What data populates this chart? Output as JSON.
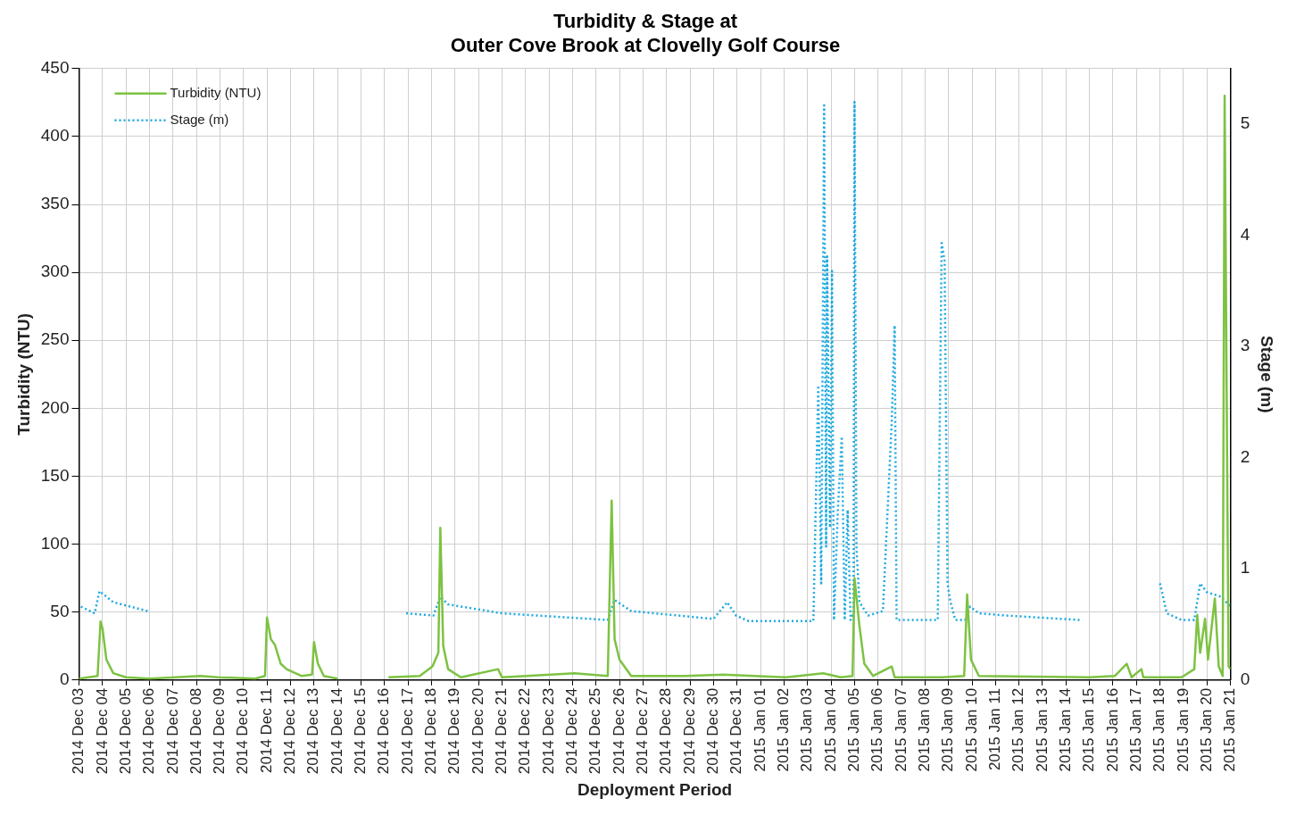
{
  "chart_data": {
    "type": "line",
    "title": "Turbidity & Stage at\nOuter Cove Brook at Clovelly Golf Course",
    "xlabel": "Deployment Period",
    "ylabel": "Turbidity (NTU)",
    "y2label": "Stage (m)",
    "xlim": [
      "2014-12-03",
      "2015-01-21"
    ],
    "xticks": [
      {
        "value": "2014-12-03",
        "label": "2014 Dec 03"
      },
      {
        "value": "2014-12-04",
        "label": "2014 Dec 04"
      },
      {
        "value": "2014-12-05",
        "label": "2014 Dec 05"
      },
      {
        "value": "2014-12-06",
        "label": "2014 Dec 06"
      },
      {
        "value": "2014-12-07",
        "label": "2014 Dec 07"
      },
      {
        "value": "2014-12-08",
        "label": "2014 Dec 08"
      },
      {
        "value": "2014-12-09",
        "label": "2014 Dec 09"
      },
      {
        "value": "2014-12-10",
        "label": "2014 Dec 10"
      },
      {
        "value": "2014-12-11",
        "label": "2014 Dec 11"
      },
      {
        "value": "2014-12-12",
        "label": "2014 Dec 12"
      },
      {
        "value": "2014-12-13",
        "label": "2014 Dec 13"
      },
      {
        "value": "2014-12-14",
        "label": "2014 Dec 14"
      },
      {
        "value": "2014-12-15",
        "label": "2014 Dec 15"
      },
      {
        "value": "2014-12-16",
        "label": "2014 Dec 16"
      },
      {
        "value": "2014-12-17",
        "label": "2014 Dec 17"
      },
      {
        "value": "2014-12-18",
        "label": "2014 Dec 18"
      },
      {
        "value": "2014-12-19",
        "label": "2014 Dec 19"
      },
      {
        "value": "2014-12-20",
        "label": "2014 Dec 20"
      },
      {
        "value": "2014-12-21",
        "label": "2014 Dec 21"
      },
      {
        "value": "2014-12-22",
        "label": "2014 Dec 22"
      },
      {
        "value": "2014-12-23",
        "label": "2014 Dec 23"
      },
      {
        "value": "2014-12-24",
        "label": "2014 Dec 24"
      },
      {
        "value": "2014-12-25",
        "label": "2014 Dec 25"
      },
      {
        "value": "2014-12-26",
        "label": "2014 Dec 26"
      },
      {
        "value": "2014-12-27",
        "label": "2014 Dec 27"
      },
      {
        "value": "2014-12-28",
        "label": "2014 Dec 28"
      },
      {
        "value": "2014-12-29",
        "label": "2014 Dec 29"
      },
      {
        "value": "2014-12-30",
        "label": "2014 Dec 30"
      },
      {
        "value": "2014-12-31",
        "label": "2014 Dec 31"
      },
      {
        "value": "2015-01-01",
        "label": "2015 Jan 01"
      },
      {
        "value": "2015-01-02",
        "label": "2015 Jan 02"
      },
      {
        "value": "2015-01-03",
        "label": "2015 Jan 03"
      },
      {
        "value": "2015-01-04",
        "label": "2015 Jan 04"
      },
      {
        "value": "2015-01-05",
        "label": "2015 Jan 05"
      },
      {
        "value": "2015-01-06",
        "label": "2015 Jan 06"
      },
      {
        "value": "2015-01-07",
        "label": "2015 Jan 07"
      },
      {
        "value": "2015-01-08",
        "label": "2015 Jan 08"
      },
      {
        "value": "2015-01-09",
        "label": "2015 Jan 09"
      },
      {
        "value": "2015-01-10",
        "label": "2015 Jan 10"
      },
      {
        "value": "2015-01-11",
        "label": "2015 Jan 11"
      },
      {
        "value": "2015-01-12",
        "label": "2015 Jan 12"
      },
      {
        "value": "2015-01-13",
        "label": "2015 Jan 13"
      },
      {
        "value": "2015-01-14",
        "label": "2015 Jan 14"
      },
      {
        "value": "2015-01-15",
        "label": "2015 Jan 15"
      },
      {
        "value": "2015-01-16",
        "label": "2015 Jan 16"
      },
      {
        "value": "2015-01-17",
        "label": "2015 Jan 17"
      },
      {
        "value": "2015-01-18",
        "label": "2015 Jan 18"
      },
      {
        "value": "2015-01-19",
        "label": "2015 Jan 19"
      },
      {
        "value": "2015-01-20",
        "label": "2015 Jan 20"
      },
      {
        "value": "2015-01-21",
        "label": "2015 Jan 21"
      }
    ],
    "ylim": [
      0,
      450
    ],
    "yticks": [
      0,
      50,
      100,
      150,
      200,
      250,
      300,
      350,
      400,
      450
    ],
    "y2lim": [
      0,
      5.5
    ],
    "y2ticks": [
      0,
      1,
      2,
      3,
      4,
      5
    ],
    "grid": true,
    "legend": "top left",
    "marker": "none",
    "series": [
      {
        "name": "Turbidity (NTU)",
        "color": "#7dc242",
        "line_style": "solid",
        "x": [
          "2014-12-03T00:00",
          "2014-12-03T19:00",
          "2014-12-03T22:00",
          "2014-12-04T00:00",
          "2014-12-04T04:00",
          "2014-12-04T11:00",
          "2014-12-05T00:00",
          "2014-12-06T00:00",
          "2014-12-08T04:00",
          "2014-12-08T22:00",
          "2014-12-10T12:00",
          "2014-12-10T22:00",
          "2014-12-11T00:00",
          "2014-12-11T04:00",
          "2014-12-11T08:00",
          "2014-12-11T14:00",
          "2014-12-11T20:00",
          "2014-12-12T11:00",
          "2014-12-12T22:00",
          "2014-12-13T00:00",
          "2014-12-13T04:00",
          "2014-12-13T10:00",
          "2014-12-14T00:00",
          "2014-12-15T00:00",
          "2014-12-16T04:00",
          "2014-12-17T12:00",
          "2014-12-18T01:00",
          "2014-12-18T07:00",
          "2014-12-18T09:00",
          "2014-12-18T12:00",
          "2014-12-18T17:00",
          "2014-12-19T06:00",
          "2014-12-20T20:00",
          "2014-12-21T00:00",
          "2014-12-24T02:00",
          "2014-12-25T12:00",
          "2014-12-25T16:00",
          "2014-12-25T19:00",
          "2014-12-26T00:00",
          "2014-12-26T12:00",
          "2014-12-28T19:00",
          "2014-12-30T10:00",
          "2015-01-02T02:00",
          "2015-01-03T16:00",
          "2015-01-04T10:00",
          "2015-01-04T22:00",
          "2015-01-05T00:00",
          "2015-01-05T05:00",
          "2015-01-05T10:00",
          "2015-01-05T19:00",
          "2015-01-06T14:00",
          "2015-01-06T17:00",
          "2015-01-08T17:00",
          "2015-01-09T16:00",
          "2015-01-09T19:00",
          "2015-01-09T23:00",
          "2015-01-10T07:00",
          "2015-01-15T00:00",
          "2015-01-16T02:00",
          "2015-01-16T14:00",
          "2015-01-16T19:00",
          "2015-01-17T05:00",
          "2015-01-17T07:00",
          "2015-01-18T22:00",
          "2015-01-19T11:00",
          "2015-01-19T14:00",
          "2015-01-19T17:00",
          "2015-01-19T22:00",
          "2015-01-20T01:00",
          "2015-01-20T08:00",
          "2015-01-20T12:00",
          "2015-01-20T16:00",
          "2015-01-20T18:00",
          "2015-01-20T22:00",
          "2015-01-21T00:00"
        ],
        "values": [
          1,
          3,
          43,
          38,
          15,
          5,
          2,
          1,
          3,
          2,
          1,
          3,
          46,
          30,
          26,
          12,
          8,
          3,
          4,
          28,
          12,
          3,
          1,
          null,
          2,
          3,
          10,
          20,
          112,
          25,
          8,
          2,
          8,
          2,
          5,
          3,
          132,
          30,
          15,
          3,
          3,
          4,
          2,
          5,
          2,
          3,
          75,
          40,
          12,
          3,
          10,
          2,
          2,
          3,
          63,
          15,
          3,
          2,
          3,
          12,
          2,
          8,
          2,
          2,
          8,
          48,
          20,
          45,
          15,
          60,
          10,
          3,
          430,
          10,
          8
        ]
      },
      {
        "name": "Stage (m)",
        "color": "#1ba9e0",
        "line_style": "dotted",
        "axis": "y2",
        "x": [
          "2014-12-03T02:00",
          "2014-12-03T16:00",
          "2014-12-03T21:00",
          "2014-12-04T11:00",
          "2014-12-05T22:00",
          "2014-12-10T00:00",
          "2014-12-16T22:00",
          "2014-12-18T02:00",
          "2014-12-18T09:00",
          "2014-12-18T17:00",
          "2014-12-21T00:00",
          "2014-12-25T12:00",
          "2014-12-25T19:00",
          "2014-12-26T12:00",
          "2014-12-30T00:00",
          "2014-12-30T14:00",
          "2014-12-30T23:00",
          "2014-12-31T12:00",
          "2015-01-03T06:00",
          "2015-01-03T11:00",
          "2015-01-03T14:00",
          "2015-01-03T17:00",
          "2015-01-03T19:00",
          "2015-01-03T20:00",
          "2015-01-03T23:00",
          "2015-01-04T01:00",
          "2015-01-04T03:00",
          "2015-01-04T07:00",
          "2015-01-04T11:00",
          "2015-01-04T14:00",
          "2015-01-04T17:00",
          "2015-01-04T20:00",
          "2015-01-04T23:00",
          "2015-01-05T00:00",
          "2015-01-05T02:00",
          "2015-01-05T05:00",
          "2015-01-05T14:00",
          "2015-01-06T05:00",
          "2015-01-06T14:00",
          "2015-01-06T17:00",
          "2015-01-06T19:00",
          "2015-01-08T13:00",
          "2015-01-08T17:00",
          "2015-01-08T20:00",
          "2015-01-08T23:00",
          "2015-01-09T02:00",
          "2015-01-09T07:00",
          "2015-01-09T17:00",
          "2015-01-09T22:00",
          "2015-01-10T07:00",
          "2015-01-11T11:00",
          "2015-01-14T14:00",
          "2015-01-15T00:00",
          "2015-01-18T00:00",
          "2015-01-18T07:00",
          "2015-01-18T22:00",
          "2015-01-19T11:00",
          "2015-01-19T17:00",
          "2015-01-20T00:00",
          "2015-01-20T14:00",
          "2015-01-21T00:00"
        ],
        "values": [
          0.66,
          0.6,
          0.8,
          0.7,
          0.62,
          null,
          0.6,
          0.58,
          0.75,
          0.68,
          0.6,
          0.54,
          0.72,
          0.62,
          0.55,
          0.7,
          0.58,
          0.53,
          0.53,
          2.65,
          0.87,
          5.17,
          1.2,
          3.81,
          1.37,
          3.68,
          0.54,
          1.53,
          2.19,
          0.54,
          1.53,
          0.54,
          0.6,
          5.2,
          1.2,
          0.7,
          0.58,
          0.62,
          2.32,
          3.19,
          0.54,
          0.54,
          3.93,
          3.77,
          0.87,
          0.7,
          0.54,
          0.54,
          0.66,
          0.6,
          0.58,
          0.54,
          null,
          0.87,
          0.6,
          0.54,
          0.54,
          0.87,
          0.79,
          0.75,
          0.66
        ]
      }
    ]
  }
}
